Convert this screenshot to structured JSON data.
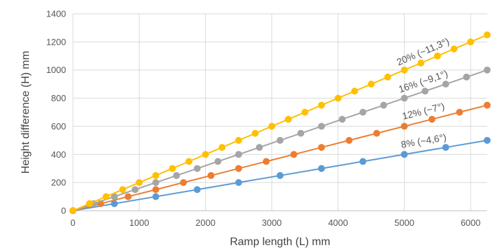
{
  "chart_data": {
    "type": "line",
    "title": "",
    "xlabel": "Ramp length (L) mm",
    "ylabel": "Height difference (H) mm",
    "xlim": [
      0,
      6250
    ],
    "ylim": [
      0,
      1400
    ],
    "xticks": [
      0,
      1000,
      2000,
      3000,
      4000,
      5000,
      6000
    ],
    "yticks": [
      0,
      200,
      400,
      600,
      800,
      1000,
      1200,
      1400
    ],
    "grid": true,
    "legend": "none",
    "series": [
      {
        "label": "8% (~4,6°)",
        "color": "#5b9bd5",
        "x": [
          0,
          625,
          1250,
          1875,
          2500,
          3125,
          3750,
          4375,
          5000,
          5625,
          6250
        ],
        "y": [
          0,
          50,
          100,
          150,
          200,
          250,
          300,
          350,
          400,
          450,
          500
        ]
      },
      {
        "label": "12% (~7°)",
        "color": "#ed7d31",
        "x": [
          0,
          417,
          833,
          1250,
          1667,
          2083,
          2500,
          2917,
          3333,
          3750,
          4167,
          4583,
          5000,
          5417,
          5833,
          6250
        ],
        "y": [
          0,
          50,
          100,
          150,
          200,
          250,
          300,
          350,
          400,
          450,
          500,
          550,
          600,
          650,
          700,
          750
        ]
      },
      {
        "label": "16% (~9,1°)",
        "color": "#a5a5a5",
        "x": [
          0,
          313,
          625,
          938,
          1250,
          1563,
          1875,
          2188,
          2500,
          2813,
          3125,
          3438,
          3750,
          4063,
          4375,
          4688,
          5000,
          5313,
          5625,
          5938,
          6250
        ],
        "y": [
          0,
          50,
          100,
          150,
          200,
          250,
          300,
          350,
          400,
          450,
          500,
          550,
          600,
          650,
          700,
          750,
          800,
          850,
          900,
          950,
          1000
        ]
      },
      {
        "label": "20% (~11,3°)",
        "color": "#ffc000",
        "x": [
          0,
          250,
          500,
          750,
          1000,
          1250,
          1500,
          1750,
          2000,
          2250,
          2500,
          2750,
          3000,
          3250,
          3500,
          3750,
          4000,
          4250,
          4500,
          4750,
          5000,
          5250,
          5500,
          5750,
          6000,
          6250
        ],
        "y": [
          0,
          50,
          100,
          150,
          200,
          250,
          300,
          350,
          400,
          450,
          500,
          550,
          600,
          650,
          700,
          750,
          800,
          850,
          900,
          950,
          1000,
          1050,
          1100,
          1150,
          1200,
          1250
        ]
      }
    ]
  }
}
